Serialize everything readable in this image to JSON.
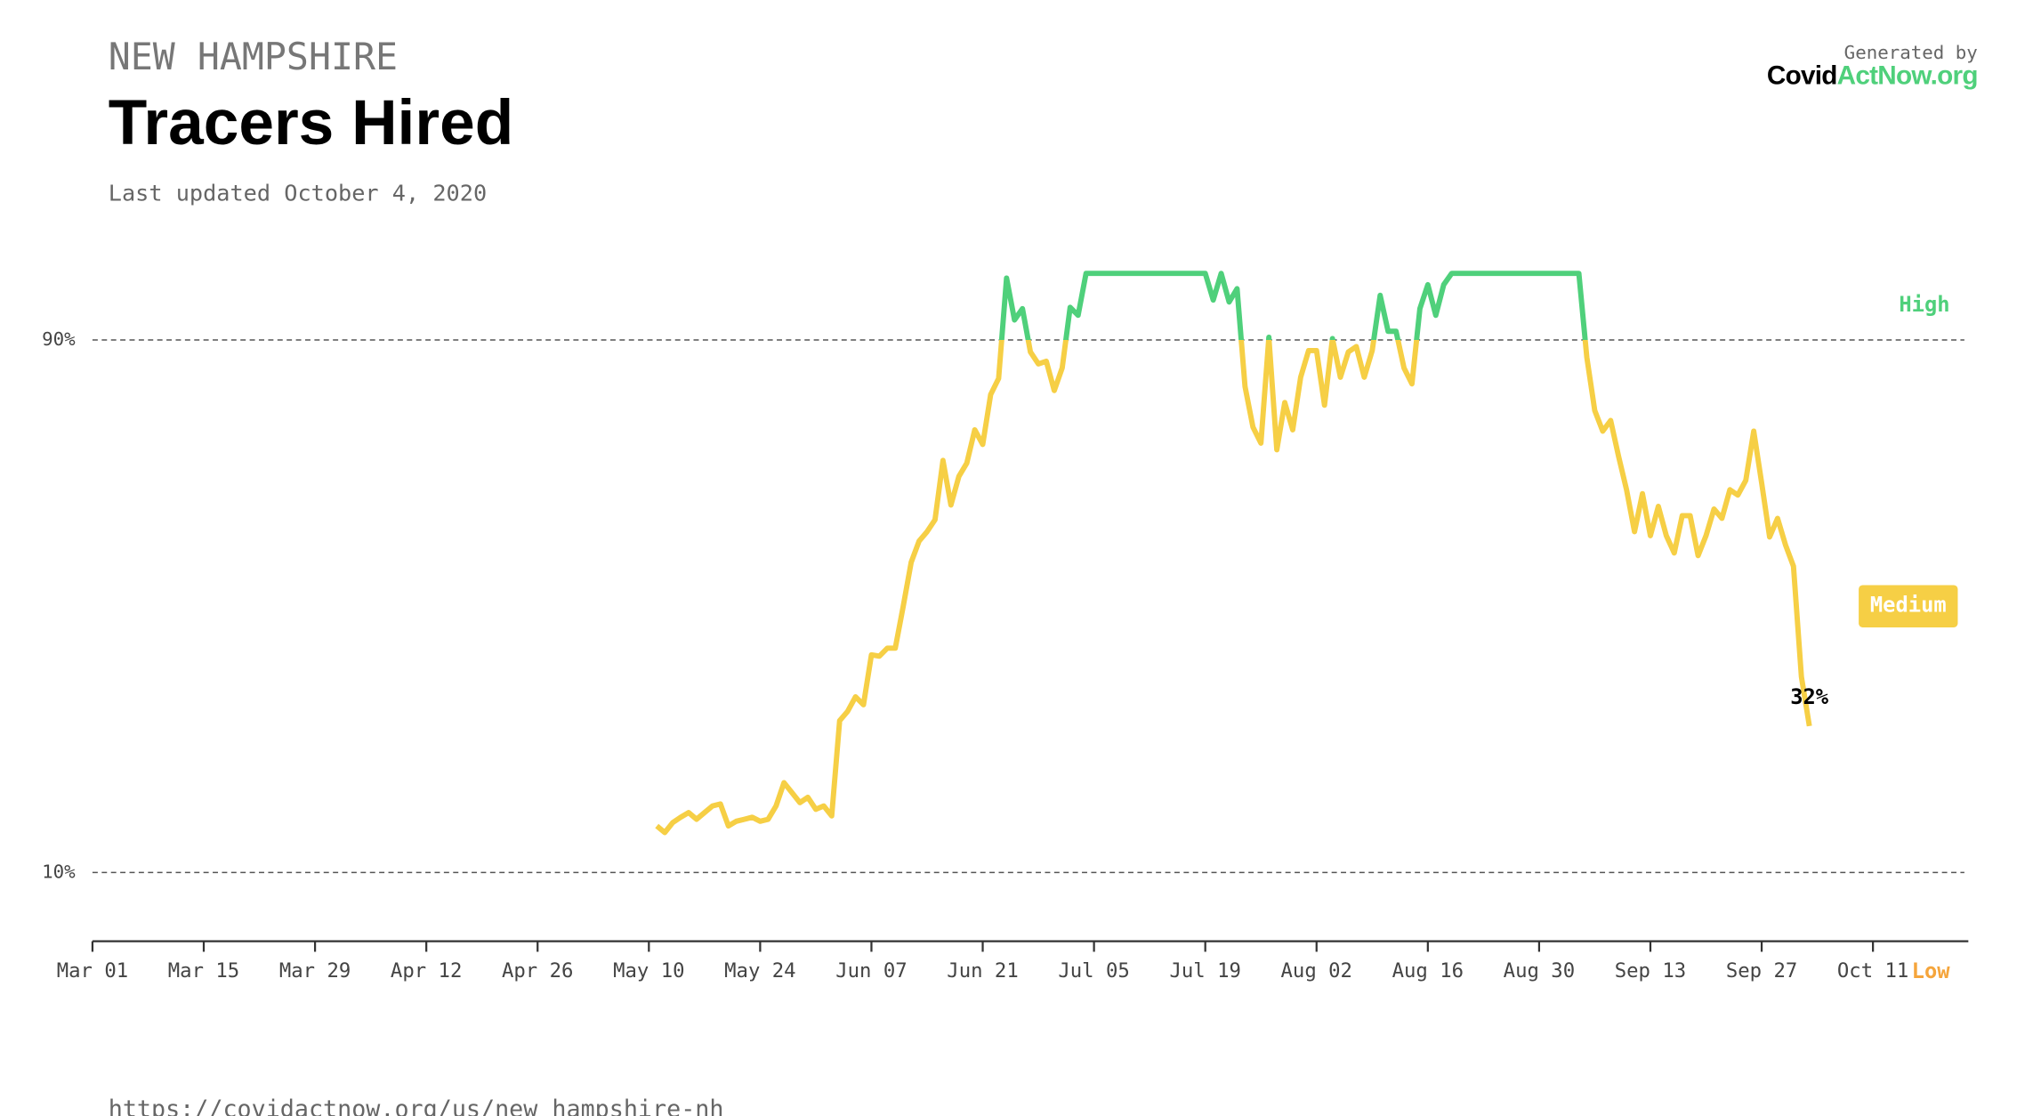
{
  "chart_data": {
    "type": "line",
    "region": "NEW HAMPSHIRE",
    "title": "Tracers Hired",
    "updated": "Last updated October 4, 2020",
    "generated_by": "Generated by",
    "logo": [
      "Covid",
      "ActNow.org"
    ],
    "source_url": "https://covidactnow.org/us/new_hampshire-nh",
    "xlim": [
      "Mar 01",
      "Oct 23"
    ],
    "xticks": [
      "Mar 01",
      "Mar 15",
      "Mar 29",
      "Apr 12",
      "Apr 26",
      "May 10",
      "May 24",
      "Jun 07",
      "Jun 21",
      "Jul 05",
      "Jul 19",
      "Aug 02",
      "Aug 16",
      "Aug 30",
      "Sep 13",
      "Sep 27",
      "Oct 11"
    ],
    "ylim": [
      0,
      100
    ],
    "yticks": [
      {
        "value": 10,
        "label": "10%"
      },
      {
        "value": 90,
        "label": "90%"
      }
    ],
    "grid": true,
    "zones": [
      {
        "label": "Low",
        "color": "#f5a53c"
      },
      {
        "label": "Medium",
        "color": "#f6cf45"
      },
      {
        "label": "High",
        "color": "#4fd07b"
      }
    ],
    "x": [
      "May 11",
      "May 12",
      "May 13",
      "May 14",
      "May 15",
      "May 16",
      "May 17",
      "May 18",
      "May 19",
      "May 20",
      "May 21",
      "May 22",
      "May 23",
      "May 24",
      "May 25",
      "May 26",
      "May 27",
      "May 28",
      "May 29",
      "May 30",
      "May 31",
      "Jun 01",
      "Jun 02",
      "Jun 03",
      "Jun 04",
      "Jun 05",
      "Jun 06",
      "Jun 07",
      "Jun 08",
      "Jun 09",
      "Jun 10",
      "Jun 11",
      "Jun 12",
      "Jun 13",
      "Jun 14",
      "Jun 15",
      "Jun 16",
      "Jun 17",
      "Jun 18",
      "Jun 19",
      "Jun 20",
      "Jun 21",
      "Jun 22",
      "Jun 23",
      "Jun 24",
      "Jun 25",
      "Jun 26",
      "Jun 27",
      "Jun 28",
      "Jun 29",
      "Jun 30",
      "Jul 01",
      "Jul 02",
      "Jul 03",
      "Jul 04",
      "Jul 05",
      "Jul 06",
      "Jul 07",
      "Jul 08",
      "Jul 09",
      "Jul 10",
      "Jul 11",
      "Jul 12",
      "Jul 13",
      "Jul 14",
      "Jul 15",
      "Jul 16",
      "Jul 17",
      "Jul 18",
      "Jul 19",
      "Jul 20",
      "Jul 21",
      "Jul 22",
      "Jul 23",
      "Jul 24",
      "Jul 25",
      "Jul 26",
      "Jul 27",
      "Jul 28",
      "Jul 29",
      "Jul 30",
      "Jul 31",
      "Aug 01",
      "Aug 02",
      "Aug 03",
      "Aug 04",
      "Aug 05",
      "Aug 06",
      "Aug 07",
      "Aug 08",
      "Aug 09",
      "Aug 10",
      "Aug 11",
      "Aug 12",
      "Aug 13",
      "Aug 14",
      "Aug 15",
      "Aug 16",
      "Aug 17",
      "Aug 18",
      "Aug 19",
      "Aug 20",
      "Aug 21",
      "Aug 22",
      "Aug 23",
      "Aug 24",
      "Aug 25",
      "Aug 26",
      "Aug 27",
      "Aug 28",
      "Aug 29",
      "Aug 30",
      "Aug 31",
      "Sep 01",
      "Sep 02",
      "Sep 03",
      "Sep 04",
      "Sep 05",
      "Sep 06",
      "Sep 07",
      "Sep 08",
      "Sep 09",
      "Sep 10",
      "Sep 11",
      "Sep 12",
      "Sep 13",
      "Sep 14",
      "Sep 15",
      "Sep 16",
      "Sep 17",
      "Sep 18",
      "Sep 19",
      "Sep 20",
      "Sep 21",
      "Sep 22",
      "Sep 23",
      "Sep 24",
      "Sep 25",
      "Sep 26",
      "Sep 27",
      "Sep 28",
      "Sep 29",
      "Sep 30",
      "Oct 01",
      "Oct 02",
      "Oct 03"
    ],
    "series": [
      {
        "values": [
          17,
          16,
          17.5,
          18.3,
          19,
          18,
          19,
          20,
          20.3,
          17,
          17.7,
          18,
          18.3,
          17.7,
          18,
          20,
          23.5,
          22,
          20.5,
          21.3,
          19.5,
          20,
          18.5,
          32.8,
          34.2,
          36.4,
          35.2,
          42.7,
          42.5,
          43.7,
          43.7,
          50,
          56.6,
          59.8,
          61.2,
          63,
          71.9,
          65.2,
          69.5,
          71.5,
          76.5,
          74.3,
          81.8,
          84.2,
          99.3,
          93,
          94.7,
          88.2,
          86.4,
          86.8,
          82.4,
          85.8,
          94.9,
          93.7,
          100,
          100,
          100,
          100,
          100,
          100,
          100,
          100,
          100,
          100,
          100,
          100,
          100,
          100,
          100,
          100,
          96,
          100,
          95.7,
          97.7,
          83,
          76.9,
          74.5,
          90.4,
          73.5,
          80.6,
          76.5,
          84.4,
          88.4,
          88.4,
          80.2,
          90.2,
          84.4,
          88.2,
          89,
          84.4,
          88.4,
          96.7,
          91.3,
          91.3,
          85.8,
          83.4,
          94.7,
          98.3,
          93.7,
          98.3,
          100,
          100,
          100,
          100,
          100,
          100,
          100,
          100,
          100,
          100,
          100,
          100,
          100,
          100,
          100,
          100,
          100,
          87.4,
          79.4,
          76.3,
          77.9,
          72.5,
          67.5,
          61.2,
          66.9,
          60.6,
          65,
          60.6,
          58,
          63.6,
          63.6,
          57.6,
          60.6,
          64.6,
          63.2,
          67.5,
          66.7,
          68.9,
          76.3,
          68.5,
          60.4,
          63.2,
          59.2,
          56,
          39.4,
          32
        ],
        "value_labels": [
          null,
          null,
          null,
          null,
          null,
          null,
          null,
          null,
          null,
          null,
          null,
          null,
          null,
          null,
          null,
          null,
          null,
          null,
          null,
          null,
          null,
          null,
          null,
          null,
          null,
          null,
          null,
          null,
          null,
          null,
          null,
          null,
          null,
          null,
          null,
          null,
          null,
          null,
          null,
          null,
          null,
          null,
          null,
          null,
          null,
          null,
          null,
          null,
          null,
          null,
          null,
          null,
          null,
          null,
          null,
          null,
          null,
          null,
          null,
          null,
          null,
          null,
          null,
          null,
          null,
          null,
          null,
          null,
          null,
          null,
          null,
          null,
          null,
          null,
          null,
          null,
          null,
          null,
          null,
          null,
          null,
          null,
          null,
          null,
          null,
          null,
          null,
          null,
          null,
          null,
          null,
          null,
          null,
          null,
          null,
          null,
          null,
          null,
          null,
          null,
          null,
          null,
          null,
          null,
          null,
          null,
          null,
          null,
          null,
          null,
          null,
          null,
          null,
          null,
          null,
          null,
          null,
          null,
          null,
          null,
          null,
          null,
          null,
          null,
          null,
          null,
          null,
          null,
          null,
          null,
          null,
          null,
          null,
          null,
          null,
          null,
          null,
          null,
          null,
          null,
          null,
          null,
          null,
          null,
          null,
          "32%"
        ]
      }
    ]
  }
}
